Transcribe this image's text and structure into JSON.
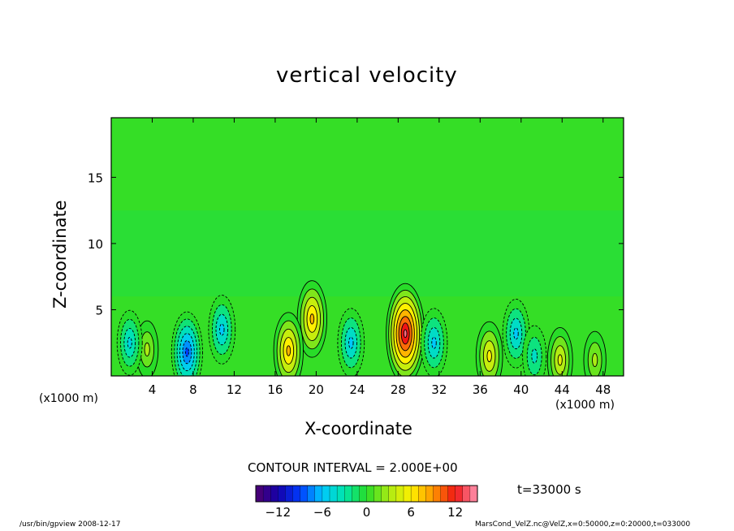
{
  "chart_data": {
    "type": "heatmap",
    "title": "vertical velocity",
    "xlabel": "X-coordinate",
    "ylabel": "Z-coordinate",
    "x_unit_left": "(x1000 m)",
    "x_unit_right": "(x1000 m)",
    "xlim": [
      0,
      50
    ],
    "ylim": [
      0,
      19.5
    ],
    "x_ticks": [
      4,
      8,
      12,
      16,
      20,
      24,
      28,
      32,
      36,
      40,
      44,
      48
    ],
    "y_ticks": [
      5,
      10,
      15
    ],
    "contour_interval": "CONTOUR INTERVAL = 2.000E+00",
    "time": "t=33000 s",
    "colorbar": {
      "min": -15,
      "max": 15,
      "ticks": [
        -12,
        -6,
        0,
        6,
        12
      ]
    },
    "features": [
      {
        "x": 28.7,
        "z": 3.2,
        "w": 14
      },
      {
        "x": 19.6,
        "z": 4.3,
        "w": 8
      },
      {
        "x": 17.3,
        "z": 1.9,
        "w": 8
      },
      {
        "x": 36.9,
        "z": 1.5,
        "w": 6
      },
      {
        "x": 43.8,
        "z": 1.2,
        "w": 5
      },
      {
        "x": 47.2,
        "z": 1.2,
        "w": 3
      },
      {
        "x": 3.5,
        "z": 2.0,
        "w": 3
      },
      {
        "x": 7.4,
        "z": 1.8,
        "w": -9
      },
      {
        "x": 10.8,
        "z": 3.5,
        "w": -6
      },
      {
        "x": 23.4,
        "z": 2.5,
        "w": -6
      },
      {
        "x": 31.5,
        "z": 2.5,
        "w": -6
      },
      {
        "x": 39.5,
        "z": 3.2,
        "w": -6
      },
      {
        "x": 1.8,
        "z": 2.5,
        "w": -5
      },
      {
        "x": 41.3,
        "z": 1.5,
        "w": -4
      }
    ]
  },
  "footer": {
    "left": "/usr/bin/gpview   2008-12-17",
    "right": "MarsCond_VelZ.nc@VelZ,x=0:50000,z=0:20000,t=033000"
  }
}
